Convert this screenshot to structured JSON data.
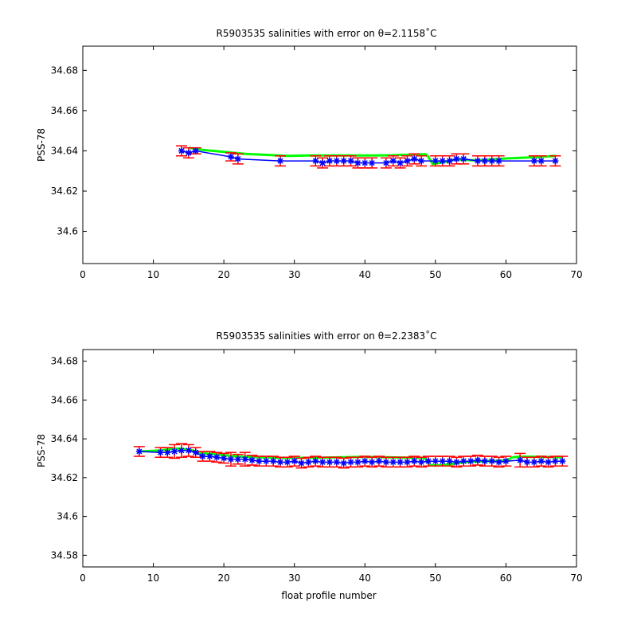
{
  "chart_data": [
    {
      "type": "scatter",
      "title": "R5903535 salinities with error on θ=2.1158˚C",
      "xlabel": "",
      "ylabel": "PSS-78",
      "xlim": [
        0,
        70
      ],
      "ylim": [
        34.584,
        34.692
      ],
      "xticks": [
        "0",
        "10",
        "20",
        "30",
        "40",
        "50",
        "60",
        "70"
      ],
      "yticks": [
        "34.6",
        "34.62",
        "34.64",
        "34.66",
        "34.68"
      ],
      "grid": false,
      "colors": {
        "points": "#0000ff",
        "errorbars": "#ff0000",
        "fit": "#00ff00"
      },
      "series": [
        {
          "kind": "fit",
          "x": [
            15,
            17,
            20,
            23,
            26,
            29,
            32,
            35,
            38,
            41,
            44,
            47,
            48.6,
            49,
            49.6,
            51,
            53,
            56,
            60,
            64,
            67
          ],
          "y": [
            34.6415,
            34.6405,
            34.6395,
            34.6385,
            34.638,
            34.6375,
            34.6377,
            34.6377,
            34.6377,
            34.6377,
            34.6378,
            34.6382,
            34.6383,
            34.637,
            34.6335,
            34.6342,
            34.6358,
            34.6352,
            34.6362,
            34.6368,
            34.6375
          ]
        },
        {
          "kind": "points",
          "x": [
            14,
            15,
            16,
            21,
            22,
            28,
            33,
            34,
            35,
            36,
            37,
            38,
            39,
            40,
            41,
            43,
            44,
            45,
            46,
            47,
            48,
            50,
            51,
            52,
            53,
            54,
            56,
            57,
            58,
            59,
            64,
            65,
            67
          ],
          "y": [
            34.64,
            34.639,
            34.64,
            34.637,
            34.636,
            34.635,
            34.635,
            34.634,
            34.635,
            34.635,
            34.635,
            34.635,
            34.634,
            34.634,
            34.634,
            34.634,
            34.635,
            34.634,
            34.635,
            34.636,
            34.635,
            34.635,
            34.635,
            34.635,
            34.636,
            34.636,
            34.635,
            34.635,
            34.635,
            34.635,
            34.635,
            34.635,
            34.635
          ],
          "err": [
            0.0025,
            0.0025,
            0.0015,
            0.002,
            0.0025,
            0.0025,
            0.0025,
            0.0025,
            0.0025,
            0.0025,
            0.0025,
            0.0025,
            0.0025,
            0.0025,
            0.0025,
            0.0025,
            0.0025,
            0.0025,
            0.0025,
            0.0025,
            0.0025,
            0.0025,
            0.0025,
            0.0025,
            0.0025,
            0.0025,
            0.0025,
            0.0025,
            0.0025,
            0.0025,
            0.0025,
            0.0025,
            0.0025
          ]
        }
      ]
    },
    {
      "type": "scatter",
      "title": "R5903535 salinities with error on θ=2.2383˚C",
      "xlabel": "float profile number",
      "ylabel": "PSS-78",
      "xlim": [
        0,
        70
      ],
      "ylim": [
        34.574,
        34.686
      ],
      "xticks": [
        "0",
        "10",
        "20",
        "30",
        "40",
        "50",
        "60",
        "70"
      ],
      "yticks": [
        "34.58",
        "34.6",
        "34.62",
        "34.64",
        "34.66",
        "34.68"
      ],
      "grid": false,
      "colors": {
        "points": "#0000ff",
        "errorbars": "#ff0000",
        "fit": "#00ff00"
      },
      "series": [
        {
          "kind": "fit",
          "x": [
            8,
            11,
            13,
            15,
            16,
            17,
            19,
            21,
            23,
            25,
            28,
            31,
            34,
            37,
            40,
            43,
            46,
            48.5,
            49.2,
            50,
            52,
            54,
            57,
            60,
            61,
            62,
            65,
            68
          ],
          "y": [
            34.6335,
            34.634,
            34.635,
            34.6345,
            34.6335,
            34.6325,
            34.632,
            34.6312,
            34.6307,
            34.6305,
            34.6302,
            34.6302,
            34.6303,
            34.6305,
            34.6307,
            34.6305,
            34.6303,
            34.6302,
            34.6265,
            34.6262,
            34.6268,
            34.628,
            34.6285,
            34.6288,
            34.6305,
            34.6308,
            34.6307,
            34.6305
          ]
        },
        {
          "kind": "points",
          "x": [
            8,
            11,
            12,
            13,
            14,
            15,
            16,
            17,
            18,
            19,
            20,
            21,
            22,
            23,
            24,
            25,
            26,
            27,
            28,
            29,
            30,
            31,
            32,
            33,
            34,
            35,
            36,
            37,
            38,
            39,
            40,
            41,
            42,
            43,
            44,
            45,
            46,
            47,
            48,
            49,
            50,
            51,
            52,
            53,
            54,
            55,
            56,
            57,
            58,
            59,
            60,
            62,
            63,
            64,
            65,
            66,
            67,
            68
          ],
          "y": [
            34.6335,
            34.633,
            34.633,
            34.6335,
            34.634,
            34.634,
            34.633,
            34.631,
            34.631,
            34.6305,
            34.63,
            34.6295,
            34.6295,
            34.6295,
            34.629,
            34.6285,
            34.6285,
            34.6285,
            34.628,
            34.628,
            34.6285,
            34.6275,
            34.628,
            34.6285,
            34.628,
            34.628,
            34.628,
            34.6275,
            34.628,
            34.628,
            34.6285,
            34.628,
            34.6285,
            34.628,
            34.628,
            34.628,
            34.628,
            34.6285,
            34.628,
            34.6285,
            34.6285,
            34.6285,
            34.6285,
            34.628,
            34.6285,
            34.6285,
            34.629,
            34.6285,
            34.6285,
            34.628,
            34.6285,
            34.629,
            34.628,
            34.628,
            34.6285,
            34.628,
            34.6285,
            34.6285
          ],
          "err": [
            0.0025,
            0.0025,
            0.0025,
            0.0035,
            0.0035,
            0.003,
            0.0025,
            0.0025,
            0.0025,
            0.0025,
            0.0025,
            0.0035,
            0.0025,
            0.0035,
            0.0025,
            0.0025,
            0.0025,
            0.0025,
            0.0025,
            0.0025,
            0.0025,
            0.0025,
            0.0025,
            0.0025,
            0.0025,
            0.0025,
            0.0025,
            0.0025,
            0.0025,
            0.0025,
            0.0025,
            0.0025,
            0.0025,
            0.0025,
            0.0025,
            0.0025,
            0.0025,
            0.0025,
            0.0025,
            0.0025,
            0.0025,
            0.0025,
            0.0025,
            0.0025,
            0.0025,
            0.0025,
            0.0025,
            0.0025,
            0.0025,
            0.0025,
            0.0025,
            0.0035,
            0.0025,
            0.0025,
            0.0025,
            0.0025,
            0.0025,
            0.0025
          ]
        }
      ]
    }
  ]
}
